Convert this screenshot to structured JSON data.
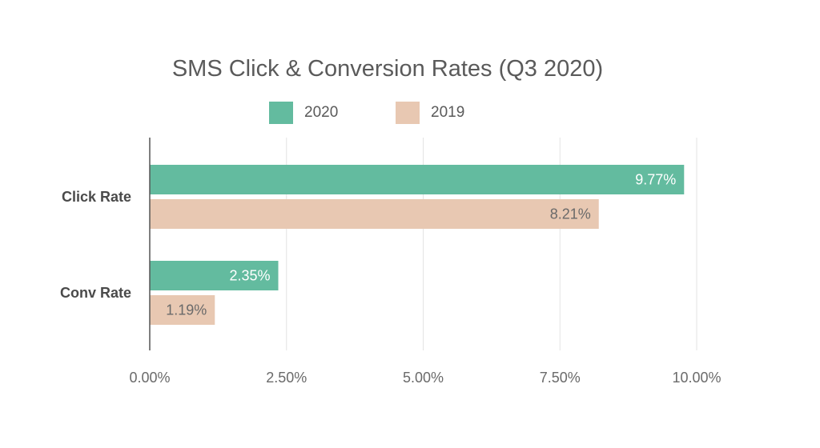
{
  "chart_data": {
    "type": "bar",
    "orientation": "horizontal",
    "title": "SMS Click & Conversion Rates (Q3 2020)",
    "categories": [
      "Click Rate",
      "Conv Rate"
    ],
    "series": [
      {
        "name": "2020",
        "values": [
          9.77,
          2.35
        ],
        "labels": [
          "9.77%",
          "2.35%"
        ],
        "color": "#63bb9f"
      },
      {
        "name": "2019",
        "values": [
          8.21,
          1.19
        ],
        "labels": [
          "8.21%",
          "1.19%"
        ],
        "color": "#e8c8b2"
      }
    ],
    "xlim": [
      0,
      10
    ],
    "ticks": [
      0,
      2.5,
      5,
      7.5,
      10
    ],
    "tick_labels": [
      "0.00%",
      "2.50%",
      "5.00%",
      "7.50%",
      "10.00%"
    ],
    "xlabel": "",
    "ylabel": "",
    "grid": true,
    "legend": "top-center"
  }
}
